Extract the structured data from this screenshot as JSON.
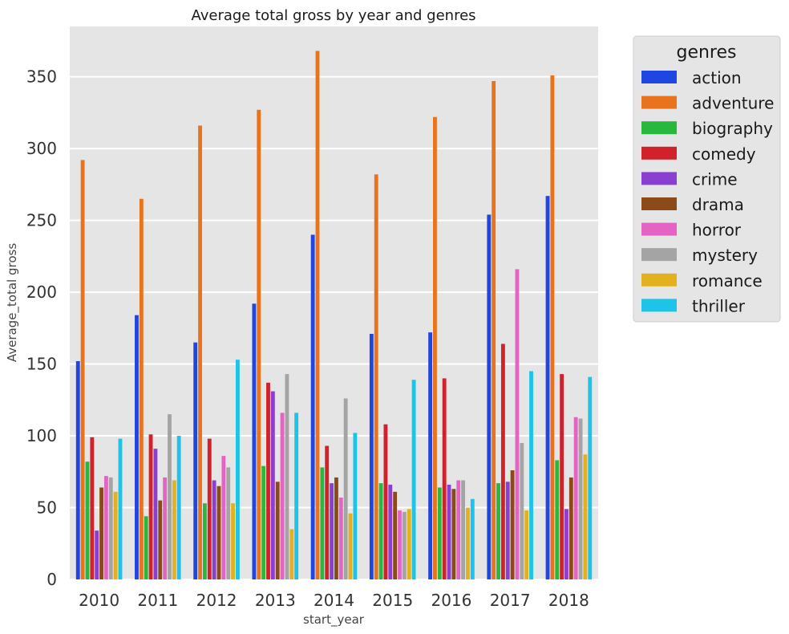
{
  "chart_data": {
    "type": "bar",
    "title": "Average total gross by year and genres",
    "xlabel": "start_year",
    "ylabel": "Average_total gross",
    "ylim": [
      0,
      385
    ],
    "yticks": [
      0,
      50,
      100,
      150,
      200,
      250,
      300,
      350
    ],
    "grid": true,
    "legend": {
      "title": "genres",
      "placement": "outside-right"
    },
    "categories": [
      "2010",
      "2011",
      "2012",
      "2013",
      "2014",
      "2015",
      "2016",
      "2017",
      "2018"
    ],
    "series": [
      {
        "name": "action",
        "color": "#1f46e0",
        "values": [
          152,
          184,
          165,
          192,
          240,
          171,
          172,
          254,
          267
        ]
      },
      {
        "name": "adventure",
        "color": "#e8731e",
        "values": [
          292,
          265,
          316,
          327,
          368,
          282,
          322,
          347,
          351
        ]
      },
      {
        "name": "biography",
        "color": "#2ab73f",
        "values": [
          82,
          44,
          53,
          79,
          78,
          67,
          64,
          67,
          83
        ]
      },
      {
        "name": "comedy",
        "color": "#d1212a",
        "values": [
          99,
          101,
          98,
          137,
          93,
          108,
          140,
          164,
          143
        ]
      },
      {
        "name": "crime",
        "color": "#8b3fd1",
        "values": [
          34,
          91,
          69,
          131,
          67,
          66,
          66,
          68,
          49
        ]
      },
      {
        "name": "drama",
        "color": "#8c4a1a",
        "values": [
          64,
          55,
          65,
          68,
          71,
          61,
          63,
          76,
          71
        ]
      },
      {
        "name": "horror",
        "color": "#e464c4",
        "values": [
          72,
          71,
          86,
          116,
          57,
          48,
          69,
          216,
          113
        ]
      },
      {
        "name": "mystery",
        "color": "#a4a4a4",
        "values": [
          71,
          115,
          78,
          143,
          126,
          47,
          69,
          95,
          112
        ]
      },
      {
        "name": "romance",
        "color": "#e3b11d",
        "values": [
          61,
          69,
          53,
          35,
          46,
          49,
          50,
          48,
          87
        ]
      },
      {
        "name": "thriller",
        "color": "#1ec4e8",
        "values": [
          98,
          100,
          153,
          116,
          102,
          139,
          56,
          145,
          141
        ]
      }
    ]
  }
}
